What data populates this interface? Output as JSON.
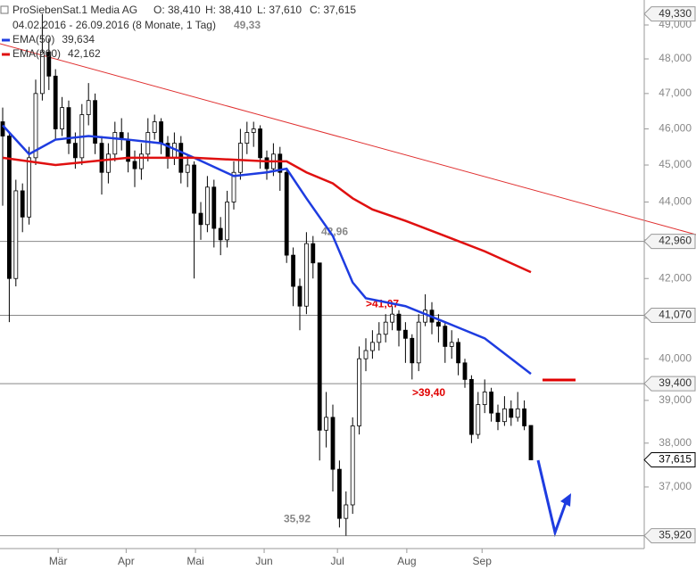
{
  "chart_data": {
    "type": "candlestick",
    "title": "ProSiebenSat.1 Media AG",
    "quote": [
      "O: 38,410",
      "H: 38,410",
      "L: 37,610",
      "C: 37,615"
    ],
    "subtitle": "04.02.2016 - 26.09.2016 (8 Monate, 1 Tag)",
    "subtitle_value": "49,33",
    "log_scale": true,
    "ylim": [
      35.64,
      49.75
    ],
    "yticks": [
      {
        "value": 37,
        "label": "37,000"
      },
      {
        "value": 38,
        "label": "38,000"
      },
      {
        "value": 39,
        "label": "39,000"
      },
      {
        "value": 40,
        "label": "40,000"
      },
      {
        "value": 41,
        "label": "41,000"
      },
      {
        "value": 42,
        "label": "42,000"
      },
      {
        "value": 43,
        "label": "43,000"
      },
      {
        "value": 44,
        "label": "44,000"
      },
      {
        "value": 45,
        "label": "45,000"
      },
      {
        "value": 46,
        "label": "46,000"
      },
      {
        "value": 47,
        "label": "47,000"
      },
      {
        "value": 48,
        "label": "48,000"
      },
      {
        "value": 49,
        "label": "49,000"
      }
    ],
    "xticks": [
      {
        "value": 8.4,
        "label": "Mär"
      },
      {
        "value": 18.7,
        "label": "Apr"
      },
      {
        "value": 29.2,
        "label": "Mai"
      },
      {
        "value": 39.6,
        "label": "Jun"
      },
      {
        "value": 50.7,
        "label": "Jul"
      },
      {
        "value": 61.2,
        "label": "Aug"
      },
      {
        "value": 72.6,
        "label": "Sep"
      }
    ],
    "open": [
      46.2,
      45.8,
      42.0,
      44.3,
      43.6,
      45.2,
      47.0,
      48.2,
      47.5,
      46.0,
      46.6,
      45.6,
      45.2,
      46.4,
      46.8,
      45.6,
      44.8,
      45.3,
      45.9,
      45.7,
      45.1,
      44.9,
      45.3,
      45.9,
      46.2,
      45.6,
      45.2,
      45.6,
      44.8,
      45.0,
      43.7,
      43.4,
      44.4,
      43.3,
      43.0,
      44.0,
      44.8,
      45.6,
      45.9,
      46.0,
      45.2,
      44.9,
      45.3,
      44.8,
      42.6,
      41.8,
      41.3,
      42.9,
      42.4,
      38.3,
      38.6,
      37.4,
      36.3,
      36.6,
      38.4,
      40.0,
      40.2,
      40.4,
      40.6,
      40.9,
      41.1,
      40.7,
      40.5,
      39.9,
      40.9,
      41.2,
      40.9,
      40.8,
      40.3,
      40.4,
      39.9,
      39.5,
      38.2,
      38.9,
      39.2,
      38.7,
      38.5,
      38.8,
      38.6,
      38.8,
      38.41
    ],
    "high": [
      46.6,
      45.9,
      44.6,
      44.5,
      45.5,
      47.4,
      49.33,
      48.6,
      47.7,
      46.9,
      46.8,
      45.9,
      46.7,
      47.3,
      47.0,
      45.8,
      45.6,
      46.2,
      46.3,
      45.9,
      45.4,
      45.6,
      46.3,
      46.4,
      46.3,
      45.8,
      45.9,
      45.8,
      45.3,
      45.1,
      44.0,
      44.7,
      44.6,
      43.6,
      44.3,
      45.1,
      46.0,
      46.2,
      46.2,
      46.1,
      45.4,
      45.6,
      45.5,
      44.9,
      42.8,
      42.0,
      43.2,
      43.1,
      42.4,
      39.2,
      38.9,
      37.6,
      36.9,
      38.6,
      40.3,
      40.5,
      40.7,
      40.9,
      41.1,
      41.3,
      41.2,
      40.9,
      40.6,
      41.1,
      41.6,
      41.4,
      41.1,
      40.9,
      40.7,
      40.5,
      40.0,
      39.6,
      39.2,
      39.5,
      39.3,
      38.9,
      39.1,
      39.0,
      39.2,
      39.0,
      38.41
    ],
    "low": [
      43.9,
      40.9,
      41.8,
      43.2,
      43.4,
      45.0,
      46.8,
      47.1,
      45.7,
      45.8,
      45.3,
      44.9,
      45.0,
      46.1,
      45.3,
      44.2,
      44.5,
      45.1,
      45.4,
      44.8,
      44.4,
      44.6,
      45.1,
      45.7,
      45.3,
      44.9,
      45.0,
      44.5,
      44.4,
      42.0,
      43.0,
      43.2,
      42.8,
      42.6,
      42.8,
      43.8,
      44.6,
      45.3,
      45.5,
      44.9,
      44.6,
      44.7,
      44.3,
      42.4,
      41.3,
      40.7,
      41.1,
      42.0,
      37.6,
      37.9,
      36.9,
      36.1,
      35.92,
      36.4,
      38.2,
      39.7,
      40.0,
      40.2,
      40.4,
      40.7,
      40.3,
      39.9,
      39.5,
      39.7,
      40.8,
      40.6,
      40.4,
      39.9,
      40.0,
      39.6,
      39.3,
      38.0,
      38.1,
      38.7,
      38.5,
      38.3,
      38.4,
      38.4,
      38.5,
      38.3,
      37.61
    ],
    "close": [
      45.8,
      42.0,
      44.3,
      43.6,
      45.2,
      47.0,
      48.2,
      47.5,
      46.0,
      46.6,
      45.6,
      45.2,
      46.4,
      46.8,
      45.6,
      44.8,
      45.3,
      45.9,
      45.7,
      45.1,
      44.9,
      45.3,
      45.9,
      46.2,
      45.6,
      45.2,
      45.6,
      44.8,
      45.0,
      43.7,
      43.4,
      44.4,
      43.3,
      43.0,
      44.0,
      44.8,
      45.6,
      45.9,
      46.0,
      45.2,
      44.9,
      45.3,
      44.8,
      42.6,
      41.8,
      41.3,
      42.9,
      42.4,
      38.3,
      38.6,
      37.4,
      36.3,
      36.6,
      38.4,
      40.0,
      40.2,
      40.4,
      40.6,
      40.9,
      41.1,
      40.7,
      40.5,
      39.9,
      40.9,
      41.2,
      40.9,
      40.8,
      40.3,
      40.4,
      39.9,
      39.5,
      38.2,
      38.9,
      39.2,
      38.7,
      38.5,
      38.8,
      38.6,
      38.8,
      38.4,
      37.615
    ],
    "series": [
      {
        "name": "EMA(50)",
        "color": "#1e3ce0",
        "last_label": "39,634",
        "x": [
          0,
          4,
          8,
          13,
          19,
          24,
          29,
          35,
          40,
          43,
          46,
          50,
          53,
          55,
          61,
          67,
          73,
          80
        ],
        "values": [
          46.1,
          45.3,
          45.7,
          45.8,
          45.7,
          45.6,
          45.2,
          44.7,
          44.8,
          44.9,
          44.1,
          43.1,
          41.9,
          41.5,
          41.3,
          40.9,
          40.5,
          39.634
        ]
      },
      {
        "name": "EMA(200)",
        "color": "#e01010",
        "last_label": "42,162",
        "x": [
          0,
          8,
          19,
          29,
          40,
          43,
          46,
          50,
          53,
          56,
          61,
          67,
          73,
          80
        ],
        "values": [
          45.2,
          45.0,
          45.2,
          45.2,
          45.1,
          45.1,
          44.8,
          44.5,
          44.1,
          43.8,
          43.5,
          43.1,
          42.7,
          42.162
        ]
      }
    ],
    "levels": [
      {
        "value": 49.33,
        "label": "49,330"
      },
      {
        "value": 42.96,
        "label": "42,960",
        "note": "42,96",
        "note_color": "#888888"
      },
      {
        "value": 41.07,
        "label": "41,070",
        "note": ">41,07",
        "note_color": "#e00000"
      },
      {
        "value": 39.4,
        "label": "39,400",
        "note": ">39,40",
        "note_color": "#e00000"
      },
      {
        "value": 35.92,
        "label": "35,920",
        "note": "35,92",
        "note_color": "#888888"
      }
    ],
    "last": {
      "value": 37.615,
      "label": "37,615"
    }
  }
}
